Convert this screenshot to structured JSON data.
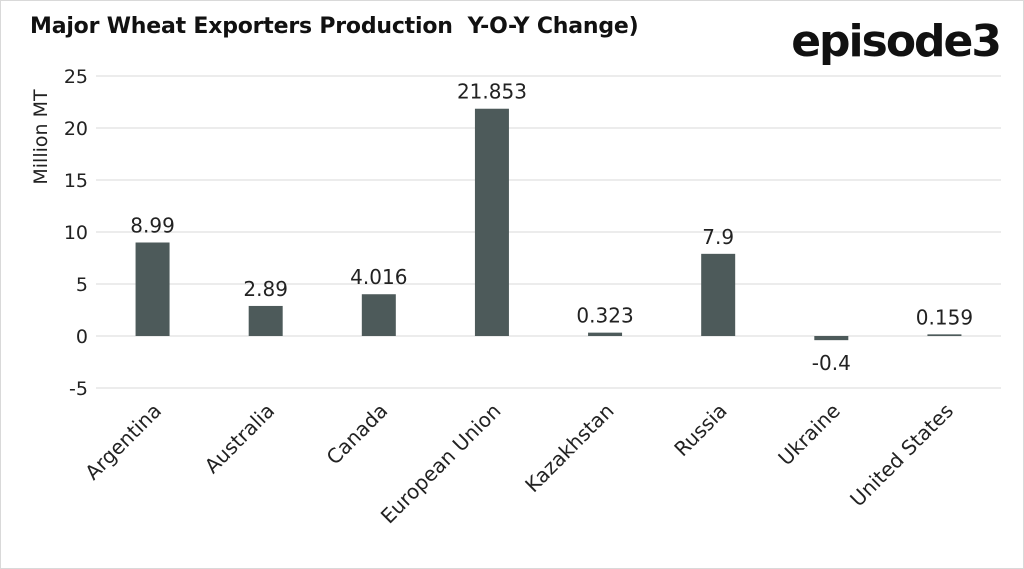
{
  "brand": {
    "logo_text": "episode3"
  },
  "chart_data": {
    "type": "bar",
    "title": "Major Wheat Exporters Production  Y-O-Y Change)",
    "xlabel": "",
    "ylabel": "Million MT",
    "ylim": [
      -5,
      25
    ],
    "yticks": [
      -5,
      0,
      5,
      10,
      15,
      20,
      25
    ],
    "grid": true,
    "categories": [
      "Argentina",
      "Australia",
      "Canada",
      "European Union",
      "Kazakhstan",
      "Russia",
      "Ukraine",
      "United States"
    ],
    "values": [
      8.99,
      2.89,
      4.016,
      21.853,
      0.323,
      7.9,
      -0.4,
      0.159
    ],
    "value_labels": [
      "8.99",
      "2.89",
      "4.016",
      "21.853",
      "0.323",
      "7.9",
      "-0.4",
      "0.159"
    ],
    "bar_color": "#4d5a5a",
    "grid_color": "#d9d9d9"
  }
}
